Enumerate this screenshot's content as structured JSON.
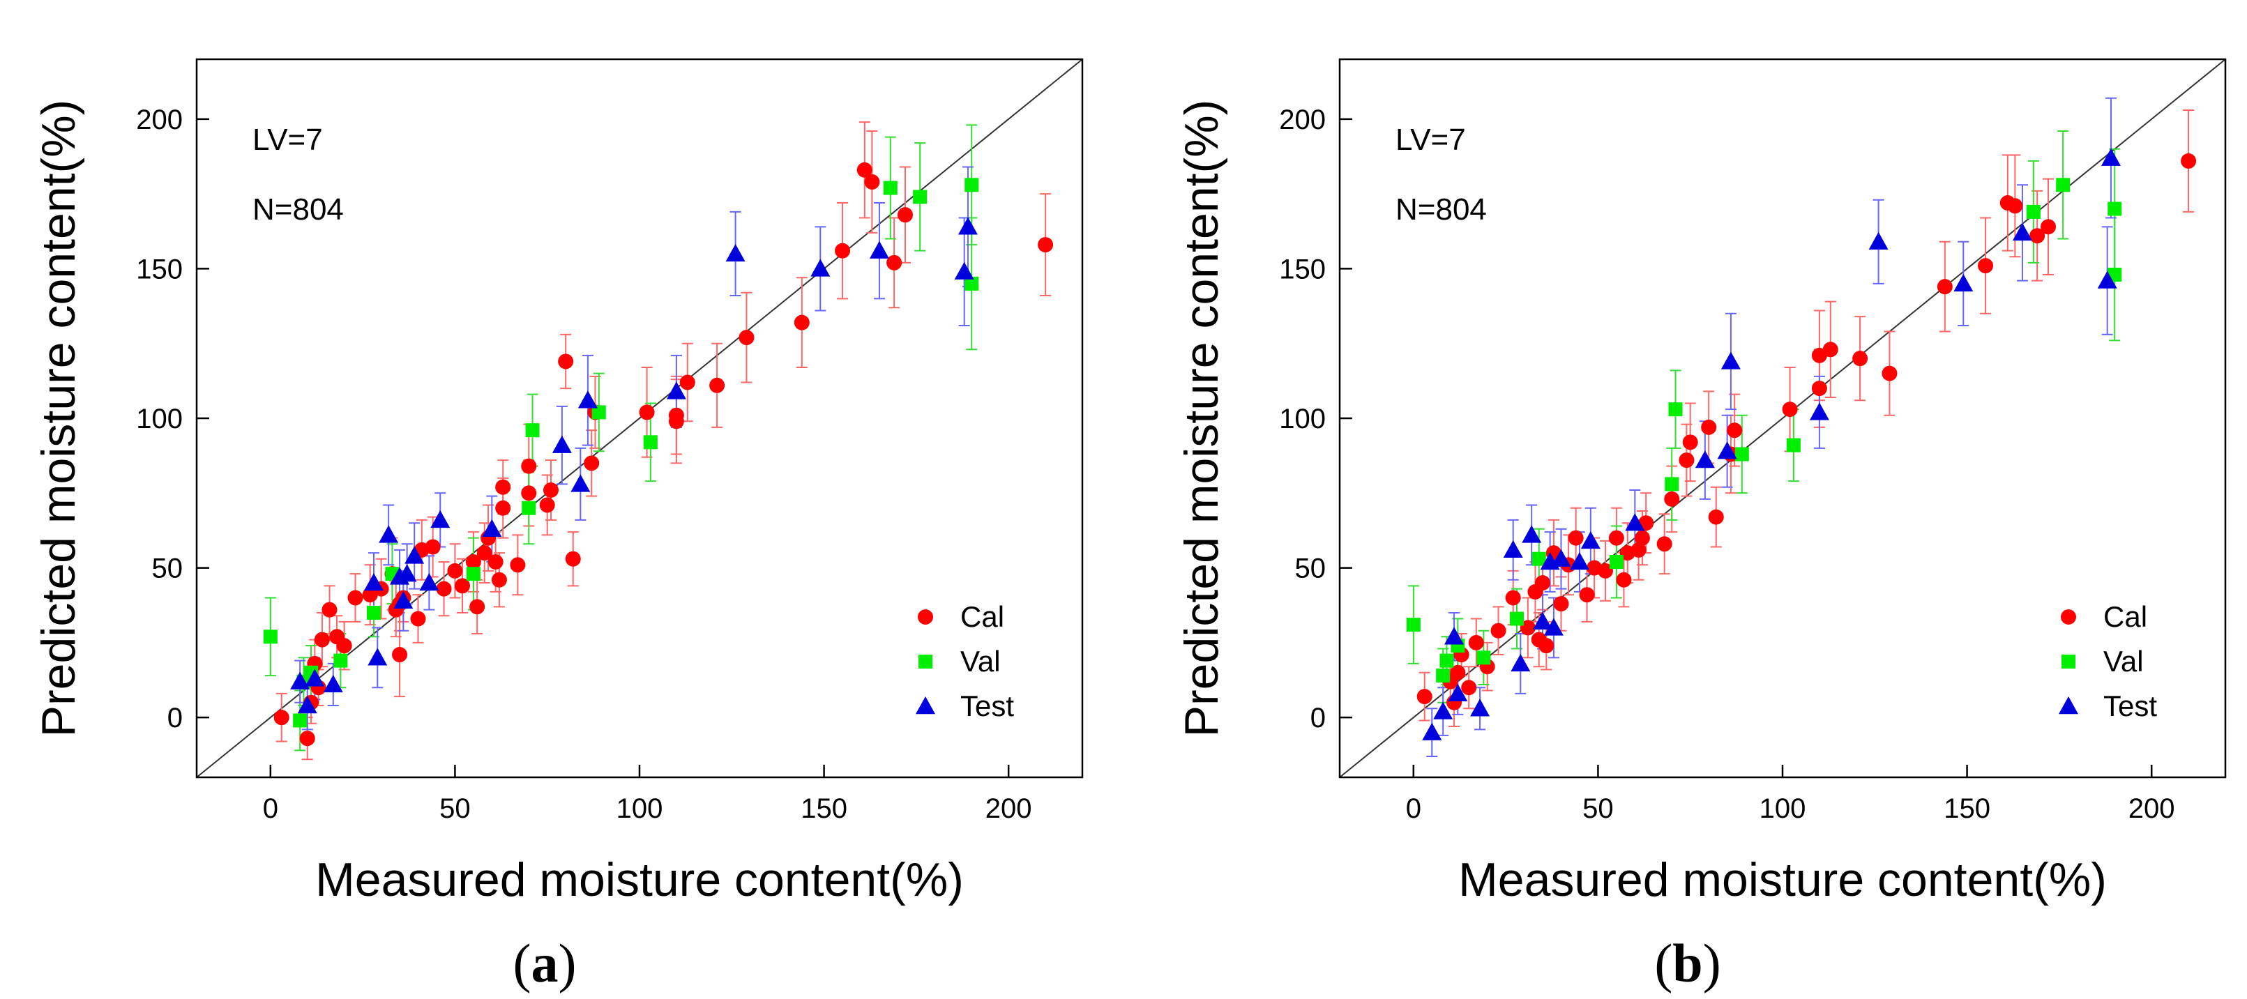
{
  "figure": {
    "panel_labels": [
      {
        "open": "(",
        "letter": "a",
        "close": ")"
      },
      {
        "open": "(",
        "letter": "b",
        "close": ")"
      }
    ]
  },
  "colors": {
    "cal": "#ff0000",
    "val": "#00ee00",
    "test": "#0000dd",
    "cal_err": "#ff6666",
    "val_err": "#33dd33",
    "test_err": "#6666ff",
    "axis": "#000000"
  },
  "chart_data": [
    {
      "type": "scatter",
      "title": "",
      "xlabel": "Measured moisture content(%)",
      "ylabel": "Predicted moisture content(%)",
      "xlim": [
        -20,
        220
      ],
      "ylim": [
        -20,
        220
      ],
      "xticks": [
        0,
        50,
        100,
        150,
        200
      ],
      "yticks": [
        0,
        50,
        100,
        150,
        200
      ],
      "annotations": [
        "LV=7",
        "N=804"
      ],
      "legend": {
        "position": "bottom-right",
        "entries": [
          "Cal",
          "Val",
          "Test"
        ]
      },
      "identity_line": true,
      "series": [
        {
          "name": "Cal",
          "marker": "circle",
          "points": [
            [
              3,
              0,
              8
            ],
            [
              10,
              -7,
              7
            ],
            [
              11,
              5,
              7
            ],
            [
              12,
              18,
              8
            ],
            [
              13,
              10,
              6
            ],
            [
              14,
              26,
              9
            ],
            [
              16,
              36,
              8
            ],
            [
              18,
              27,
              7
            ],
            [
              20,
              24,
              8
            ],
            [
              23,
              40,
              8
            ],
            [
              27,
              41,
              10
            ],
            [
              30,
              43,
              10
            ],
            [
              33,
              48,
              12
            ],
            [
              34,
              36,
              9
            ],
            [
              35,
              21,
              14
            ],
            [
              35,
              38,
              9
            ],
            [
              36,
              40,
              8
            ],
            [
              40,
              33,
              8
            ],
            [
              41,
              56,
              10
            ],
            [
              44,
              57,
              10
            ],
            [
              47,
              43,
              9
            ],
            [
              50,
              49,
              9
            ],
            [
              52,
              44,
              9
            ],
            [
              55,
              52,
              10
            ],
            [
              56,
              37,
              9
            ],
            [
              58,
              55,
              10
            ],
            [
              59,
              60,
              11
            ],
            [
              61,
              52,
              10
            ],
            [
              62,
              46,
              9
            ],
            [
              63,
              70,
              10
            ],
            [
              63,
              77,
              9
            ],
            [
              67,
              51,
              10
            ],
            [
              70,
              84,
              14
            ],
            [
              70,
              75,
              11
            ],
            [
              75,
              71,
              10
            ],
            [
              76,
              76,
              10
            ],
            [
              80,
              119,
              9
            ],
            [
              82,
              53,
              9
            ],
            [
              87,
              85,
              11
            ],
            [
              88,
              102,
              12
            ],
            [
              102,
              102,
              15
            ],
            [
              110,
              101,
              13
            ],
            [
              110,
              99,
              14
            ],
            [
              113,
              112,
              13
            ],
            [
              121,
              111,
              14
            ],
            [
              129,
              127,
              15
            ],
            [
              144,
              132,
              15
            ],
            [
              155,
              156,
              16
            ],
            [
              161,
              183,
              16
            ],
            [
              163,
              179,
              17
            ],
            [
              169,
              152,
              15
            ],
            [
              172,
              168,
              16
            ],
            [
              210,
              158,
              17
            ]
          ]
        },
        {
          "name": "Val",
          "marker": "square",
          "points": [
            [
              0,
              27,
              13
            ],
            [
              8,
              -1,
              10
            ],
            [
              9,
              12,
              8
            ],
            [
              11,
              15,
              9
            ],
            [
              19,
              19,
              9
            ],
            [
              28,
              35,
              8
            ],
            [
              33,
              48,
              10
            ],
            [
              55,
              48,
              12
            ],
            [
              70,
              70,
              12
            ],
            [
              71,
              96,
              12
            ],
            [
              89,
              102,
              13
            ],
            [
              103,
              92,
              13
            ],
            [
              168,
              177,
              17
            ],
            [
              176,
              174,
              18
            ],
            [
              190,
              145,
              22
            ],
            [
              190,
              178,
              20
            ]
          ]
        },
        {
          "name": "Test",
          "marker": "triangle",
          "points": [
            [
              8,
              12,
              7
            ],
            [
              10,
              4,
              8
            ],
            [
              12,
              13,
              7
            ],
            [
              17,
              11,
              7
            ],
            [
              28,
              45,
              10
            ],
            [
              29,
              20,
              10
            ],
            [
              32,
              61,
              10
            ],
            [
              35,
              47,
              9
            ],
            [
              36,
              39,
              10
            ],
            [
              37,
              48,
              10
            ],
            [
              39,
              54,
              11
            ],
            [
              43,
              45,
              9
            ],
            [
              46,
              66,
              9
            ],
            [
              60,
              63,
              11
            ],
            [
              79,
              91,
              13
            ],
            [
              84,
              78,
              12
            ],
            [
              86,
              106,
              15
            ],
            [
              110,
              109,
              12
            ],
            [
              126,
              155,
              14
            ],
            [
              149,
              150,
              14
            ],
            [
              165,
              156,
              16
            ],
            [
              188,
              149,
              18
            ],
            [
              189,
              164,
              20
            ]
          ]
        }
      ]
    },
    {
      "type": "scatter",
      "title": "",
      "xlabel": "Measured moisture content(%)",
      "ylabel": "Predicted moisture content(%)",
      "xlim": [
        -20,
        220
      ],
      "ylim": [
        -20,
        220
      ],
      "xticks": [
        0,
        50,
        100,
        150,
        200
      ],
      "yticks": [
        0,
        50,
        100,
        150,
        200
      ],
      "annotations": [
        "LV=7",
        "N=804"
      ],
      "legend": {
        "position": "bottom-right",
        "entries": [
          "Cal",
          "Val",
          "Test"
        ]
      },
      "identity_line": true,
      "series": [
        {
          "name": "Cal",
          "marker": "circle",
          "points": [
            [
              3,
              7,
              8
            ],
            [
              10,
              12,
              7
            ],
            [
              11,
              5,
              8
            ],
            [
              12,
              15,
              9
            ],
            [
              13,
              21,
              7
            ],
            [
              15,
              10,
              7
            ],
            [
              17,
              25,
              8
            ],
            [
              20,
              17,
              8
            ],
            [
              23,
              29,
              8
            ],
            [
              27,
              40,
              9
            ],
            [
              31,
              30,
              10
            ],
            [
              33,
              42,
              10
            ],
            [
              34,
              26,
              9
            ],
            [
              35,
              45,
              9
            ],
            [
              36,
              24,
              8
            ],
            [
              38,
              55,
              11
            ],
            [
              40,
              38,
              9
            ],
            [
              42,
              51,
              10
            ],
            [
              44,
              60,
              10
            ],
            [
              47,
              41,
              9
            ],
            [
              49,
              50,
              10
            ],
            [
              52,
              49,
              10
            ],
            [
              55,
              60,
              10
            ],
            [
              57,
              46,
              9
            ],
            [
              58,
              55,
              10
            ],
            [
              61,
              56,
              10
            ],
            [
              62,
              60,
              9
            ],
            [
              63,
              65,
              10
            ],
            [
              68,
              58,
              10
            ],
            [
              70,
              73,
              11
            ],
            [
              74,
              86,
              12
            ],
            [
              75,
              92,
              13
            ],
            [
              80,
              97,
              12
            ],
            [
              82,
              67,
              10
            ],
            [
              86,
              88,
              13
            ],
            [
              87,
              96,
              12
            ],
            [
              102,
              103,
              14
            ],
            [
              110,
              110,
              13
            ],
            [
              110,
              121,
              15
            ],
            [
              113,
              123,
              16
            ],
            [
              121,
              120,
              14
            ],
            [
              129,
              115,
              14
            ],
            [
              144,
              144,
              15
            ],
            [
              155,
              151,
              16
            ],
            [
              161,
              172,
              16
            ],
            [
              163,
              171,
              17
            ],
            [
              169,
              161,
              15
            ],
            [
              172,
              164,
              16
            ],
            [
              210,
              186,
              17
            ]
          ]
        },
        {
          "name": "Val",
          "marker": "square",
          "points": [
            [
              0,
              31,
              13
            ],
            [
              8,
              14,
              9
            ],
            [
              9,
              19,
              8
            ],
            [
              12,
              24,
              9
            ],
            [
              19,
              20,
              9
            ],
            [
              28,
              33,
              10
            ],
            [
              34,
              53,
              10
            ],
            [
              55,
              52,
              12
            ],
            [
              70,
              78,
              12
            ],
            [
              71,
              103,
              13
            ],
            [
              89,
              88,
              13
            ],
            [
              103,
              91,
              12
            ],
            [
              168,
              169,
              17
            ],
            [
              176,
              178,
              18
            ],
            [
              190,
              148,
              22
            ],
            [
              190,
              170,
              20
            ]
          ]
        },
        {
          "name": "Test",
          "marker": "triangle",
          "points": [
            [
              5,
              -5,
              8
            ],
            [
              8,
              2,
              8
            ],
            [
              11,
              27,
              8
            ],
            [
              12,
              8,
              7
            ],
            [
              18,
              3,
              7
            ],
            [
              27,
              56,
              10
            ],
            [
              29,
              18,
              10
            ],
            [
              32,
              61,
              10
            ],
            [
              35,
              32,
              9
            ],
            [
              37,
              52,
              10
            ],
            [
              38,
              30,
              10
            ],
            [
              40,
              53,
              10
            ],
            [
              45,
              52,
              10
            ],
            [
              48,
              59,
              11
            ],
            [
              60,
              65,
              11
            ],
            [
              79,
              86,
              13
            ],
            [
              85,
              89,
              12
            ],
            [
              86,
              119,
              16
            ],
            [
              110,
              102,
              12
            ],
            [
              126,
              159,
              14
            ],
            [
              149,
              145,
              14
            ],
            [
              165,
              162,
              16
            ],
            [
              188,
              146,
              18
            ],
            [
              189,
              187,
              20
            ]
          ]
        }
      ]
    }
  ]
}
